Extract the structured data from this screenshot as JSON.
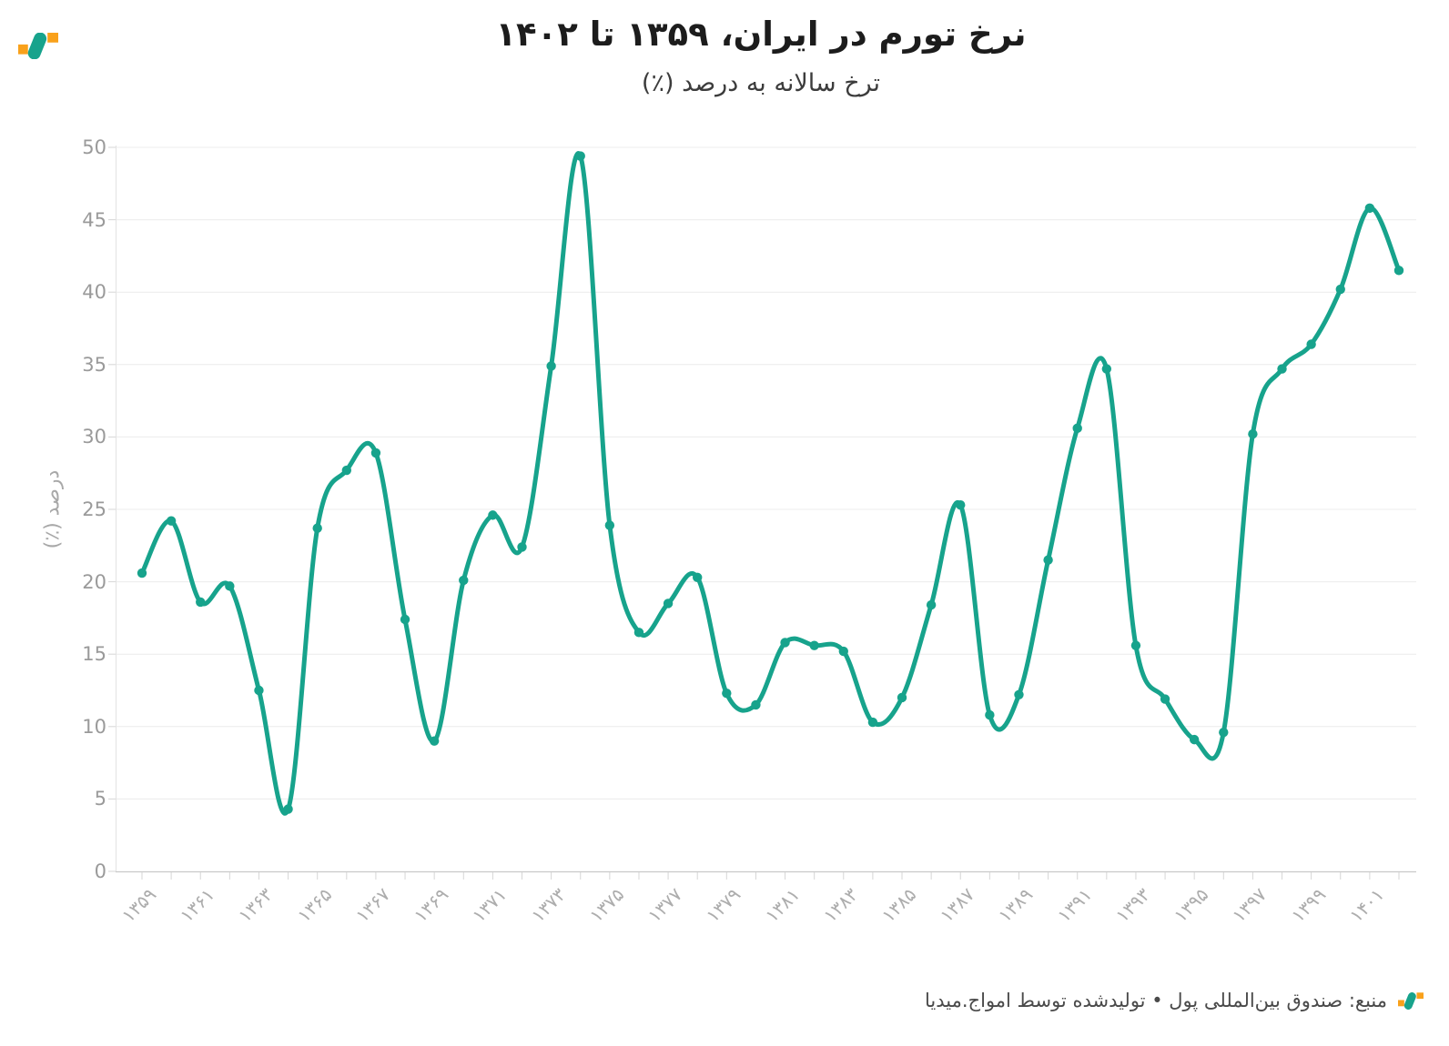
{
  "header": {
    "title": "نرخ تورم در ایران، ۱۳۵۹ تا ۱۴۰۲",
    "subtitle": "ترخ سالانه به درصد (٪)"
  },
  "footer": {
    "source": "منبع: صندوق بین‌المللی پول • تولیدشده توسط امواج.میدیا"
  },
  "brand": {
    "orange": "#F9A11B",
    "teal": "#17A38C"
  },
  "chart_data": {
    "type": "line",
    "title": "نرخ تورم در ایران، ۱۳۵۹ تا ۱۴۰۲",
    "subtitle": "ترخ سالانه به درصد (٪)",
    "ylabel": "درصد (٪)",
    "x": [
      1359,
      1360,
      1361,
      1362,
      1363,
      1364,
      1365,
      1366,
      1367,
      1368,
      1369,
      1370,
      1371,
      1372,
      1373,
      1374,
      1375,
      1376,
      1377,
      1378,
      1379,
      1380,
      1381,
      1382,
      1383,
      1384,
      1385,
      1386,
      1387,
      1388,
      1389,
      1390,
      1391,
      1392,
      1393,
      1394,
      1395,
      1396,
      1397,
      1398,
      1399,
      1400,
      1401,
      1402
    ],
    "values": [
      20.6,
      24.2,
      18.6,
      19.7,
      12.5,
      4.3,
      23.7,
      27.7,
      28.9,
      17.4,
      9.0,
      20.1,
      24.6,
      22.4,
      34.9,
      49.4,
      23.9,
      16.5,
      18.5,
      20.3,
      12.3,
      11.5,
      15.8,
      15.6,
      15.2,
      10.3,
      12.0,
      18.4,
      25.3,
      10.8,
      12.2,
      21.5,
      30.6,
      34.7,
      15.6,
      11.9,
      9.1,
      9.6,
      30.2,
      34.7,
      36.4,
      40.2,
      45.8,
      41.5
    ],
    "ylim": [
      0,
      50
    ],
    "ytick_step": 5,
    "ytick_labels": [
      "0",
      "5",
      "10",
      "15",
      "20",
      "25",
      "30",
      "35",
      "40",
      "45",
      "50"
    ],
    "xtick_years": [
      1359,
      1361,
      1363,
      1365,
      1367,
      1369,
      1371,
      1373,
      1375,
      1377,
      1379,
      1381,
      1383,
      1385,
      1387,
      1389,
      1391,
      1393,
      1395,
      1397,
      1399,
      1401
    ],
    "xtick_labels": [
      "۱۳۵۹",
      "۱۳۶۱",
      "۱۳۶۳",
      "۱۳۶۵",
      "۱۳۶۷",
      "۱۳۶۹",
      "۱۳۷۱",
      "۱۳۷۳",
      "۱۳۷۵",
      "۱۳۷۷",
      "۱۳۷۹",
      "۱۳۸۱",
      "۱۳۸۳",
      "۱۳۸۵",
      "۱۳۸۷",
      "۱۳۸۹",
      "۱۳۹۱",
      "۱۳۹۳",
      "۱۳۹۵",
      "۱۳۹۷",
      "۱۳۹۹",
      "۱۴۰۱"
    ],
    "grid": "horizontal",
    "legend": "none",
    "line_color": "#17A38C",
    "point_color": "#17A38C",
    "grid_color": "#ececec",
    "axis_color": "#c9c9c9",
    "tick_color": "#d6d6d6"
  }
}
